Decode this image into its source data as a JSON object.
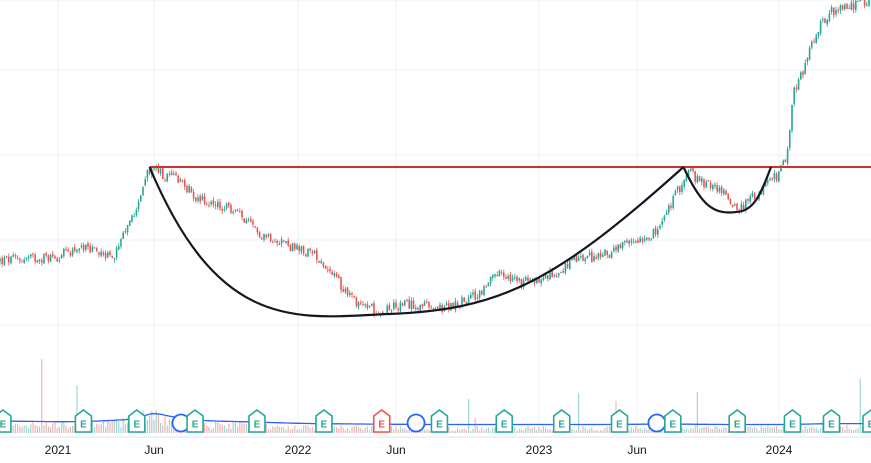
{
  "colors": {
    "up": "#26a69a",
    "down": "#ef5350",
    "resistance": "#d32f2f",
    "pattern": "#131722",
    "volume_ma": "#2962ff",
    "grid": "#eef0f3",
    "axis_text": "#131722",
    "earnings_marker": "#26a69a",
    "earnings_marker_red": "#ef5350",
    "dividend_marker": "#2962ff"
  },
  "chart_data": {
    "type": "candlestick",
    "title": "",
    "price_scale_visible": false,
    "grid": true,
    "x_axis": {
      "tick_labels": [
        "2021",
        "Jun",
        "2022",
        "Jun",
        "2023",
        "Jun",
        "2024"
      ],
      "range": [
        "2020-11-01",
        "2024-07-31"
      ]
    },
    "series": [
      {
        "kind": "price_close",
        "x": [
          "2020-11-01",
          "2021-01-01",
          "2021-02-01",
          "2021-03-01",
          "2021-04-01",
          "2021-05-01",
          "2021-05-20",
          "2021-06-01",
          "2021-06-20",
          "2021-07-01",
          "2021-08-01",
          "2021-09-01",
          "2021-10-01",
          "2021-11-01",
          "2021-12-01",
          "2022-01-01",
          "2022-02-01",
          "2022-03-01",
          "2022-04-01",
          "2022-05-01",
          "2022-06-01",
          "2022-07-01",
          "2022-08-01",
          "2022-09-01",
          "2022-10-01",
          "2022-11-01",
          "2022-12-01",
          "2023-01-01",
          "2023-02-01",
          "2023-03-01",
          "2023-04-01",
          "2023-05-01",
          "2023-06-01",
          "2023-07-01",
          "2023-08-01",
          "2023-08-20",
          "2023-09-01",
          "2023-10-01",
          "2023-11-01",
          "2023-12-01",
          "2024-01-01",
          "2024-01-20",
          "2024-02-01",
          "2024-03-01",
          "2024-04-01",
          "2024-05-01",
          "2024-06-01",
          "2024-07-01"
        ],
        "y": [
          0.56,
          0.58,
          0.61,
          0.6,
          0.58,
          0.73,
          0.85,
          0.88,
          0.84,
          0.86,
          0.78,
          0.75,
          0.73,
          0.66,
          0.64,
          0.6,
          0.58,
          0.5,
          0.43,
          0.4,
          0.41,
          0.42,
          0.4,
          0.42,
          0.45,
          0.52,
          0.49,
          0.5,
          0.53,
          0.57,
          0.58,
          0.6,
          0.64,
          0.66,
          0.8,
          0.87,
          0.83,
          0.81,
          0.74,
          0.79,
          0.86,
          0.91,
          1.12,
          1.22,
          1.35,
          1.4,
          1.41,
          1.43
        ]
      },
      {
        "kind": "volume",
        "x": [
          "2020-11-01",
          "2021-01-01",
          "2021-03-01",
          "2021-04-15",
          "2021-05-10",
          "2021-05-25",
          "2021-06-15",
          "2021-08-01",
          "2021-10-01",
          "2022-01-01",
          "2022-04-01",
          "2022-07-01",
          "2022-10-01",
          "2023-01-01",
          "2023-04-01",
          "2023-07-01",
          "2023-10-01",
          "2024-01-01",
          "2024-04-01",
          "2024-07-01"
        ],
        "y": [
          0.9,
          0.8,
          0.9,
          1.1,
          1.6,
          2.0,
          1.3,
          0.9,
          0.8,
          0.6,
          0.55,
          0.5,
          0.5,
          0.5,
          0.5,
          0.55,
          0.5,
          0.5,
          0.6,
          0.6
        ]
      }
    ],
    "annotations": {
      "resistance_level": 0.88,
      "cup": {
        "start": "2021-05-25",
        "bottom": "2022-05-20",
        "bottom_value": 0.4,
        "end": "2023-08-10"
      },
      "handle": {
        "start": "2023-08-10",
        "bottom": "2023-11-01",
        "bottom_value": 0.74,
        "end": "2023-12-20"
      },
      "earnings_events": [
        {
          "date": "2020-11-20",
          "label": "E"
        },
        {
          "date": "2021-02-10",
          "label": "E"
        },
        {
          "date": "2021-05-05",
          "label": "E"
        },
        {
          "date": "2021-08-01",
          "label": "E"
        },
        {
          "date": "2021-11-01",
          "label": "E"
        },
        {
          "date": "2022-02-10",
          "label": "E"
        },
        {
          "date": "2022-05-10",
          "label": "E"
        },
        {
          "date": "2022-08-05",
          "label": "E"
        },
        {
          "date": "2022-11-10",
          "label": "E"
        },
        {
          "date": "2023-02-05",
          "label": "E"
        },
        {
          "date": "2023-05-05",
          "label": "E"
        },
        {
          "date": "2023-07-25",
          "label": "E"
        },
        {
          "date": "2023-10-30",
          "label": "E"
        },
        {
          "date": "2024-02-01",
          "label": "E"
        },
        {
          "date": "2024-05-01",
          "label": "E"
        },
        {
          "date": "2024-07-31",
          "label": "E"
        }
      ],
      "dividend_events": [
        {
          "date": "2021-07-20"
        },
        {
          "date": "2022-07-10"
        },
        {
          "date": "2023-07-10"
        }
      ]
    }
  }
}
